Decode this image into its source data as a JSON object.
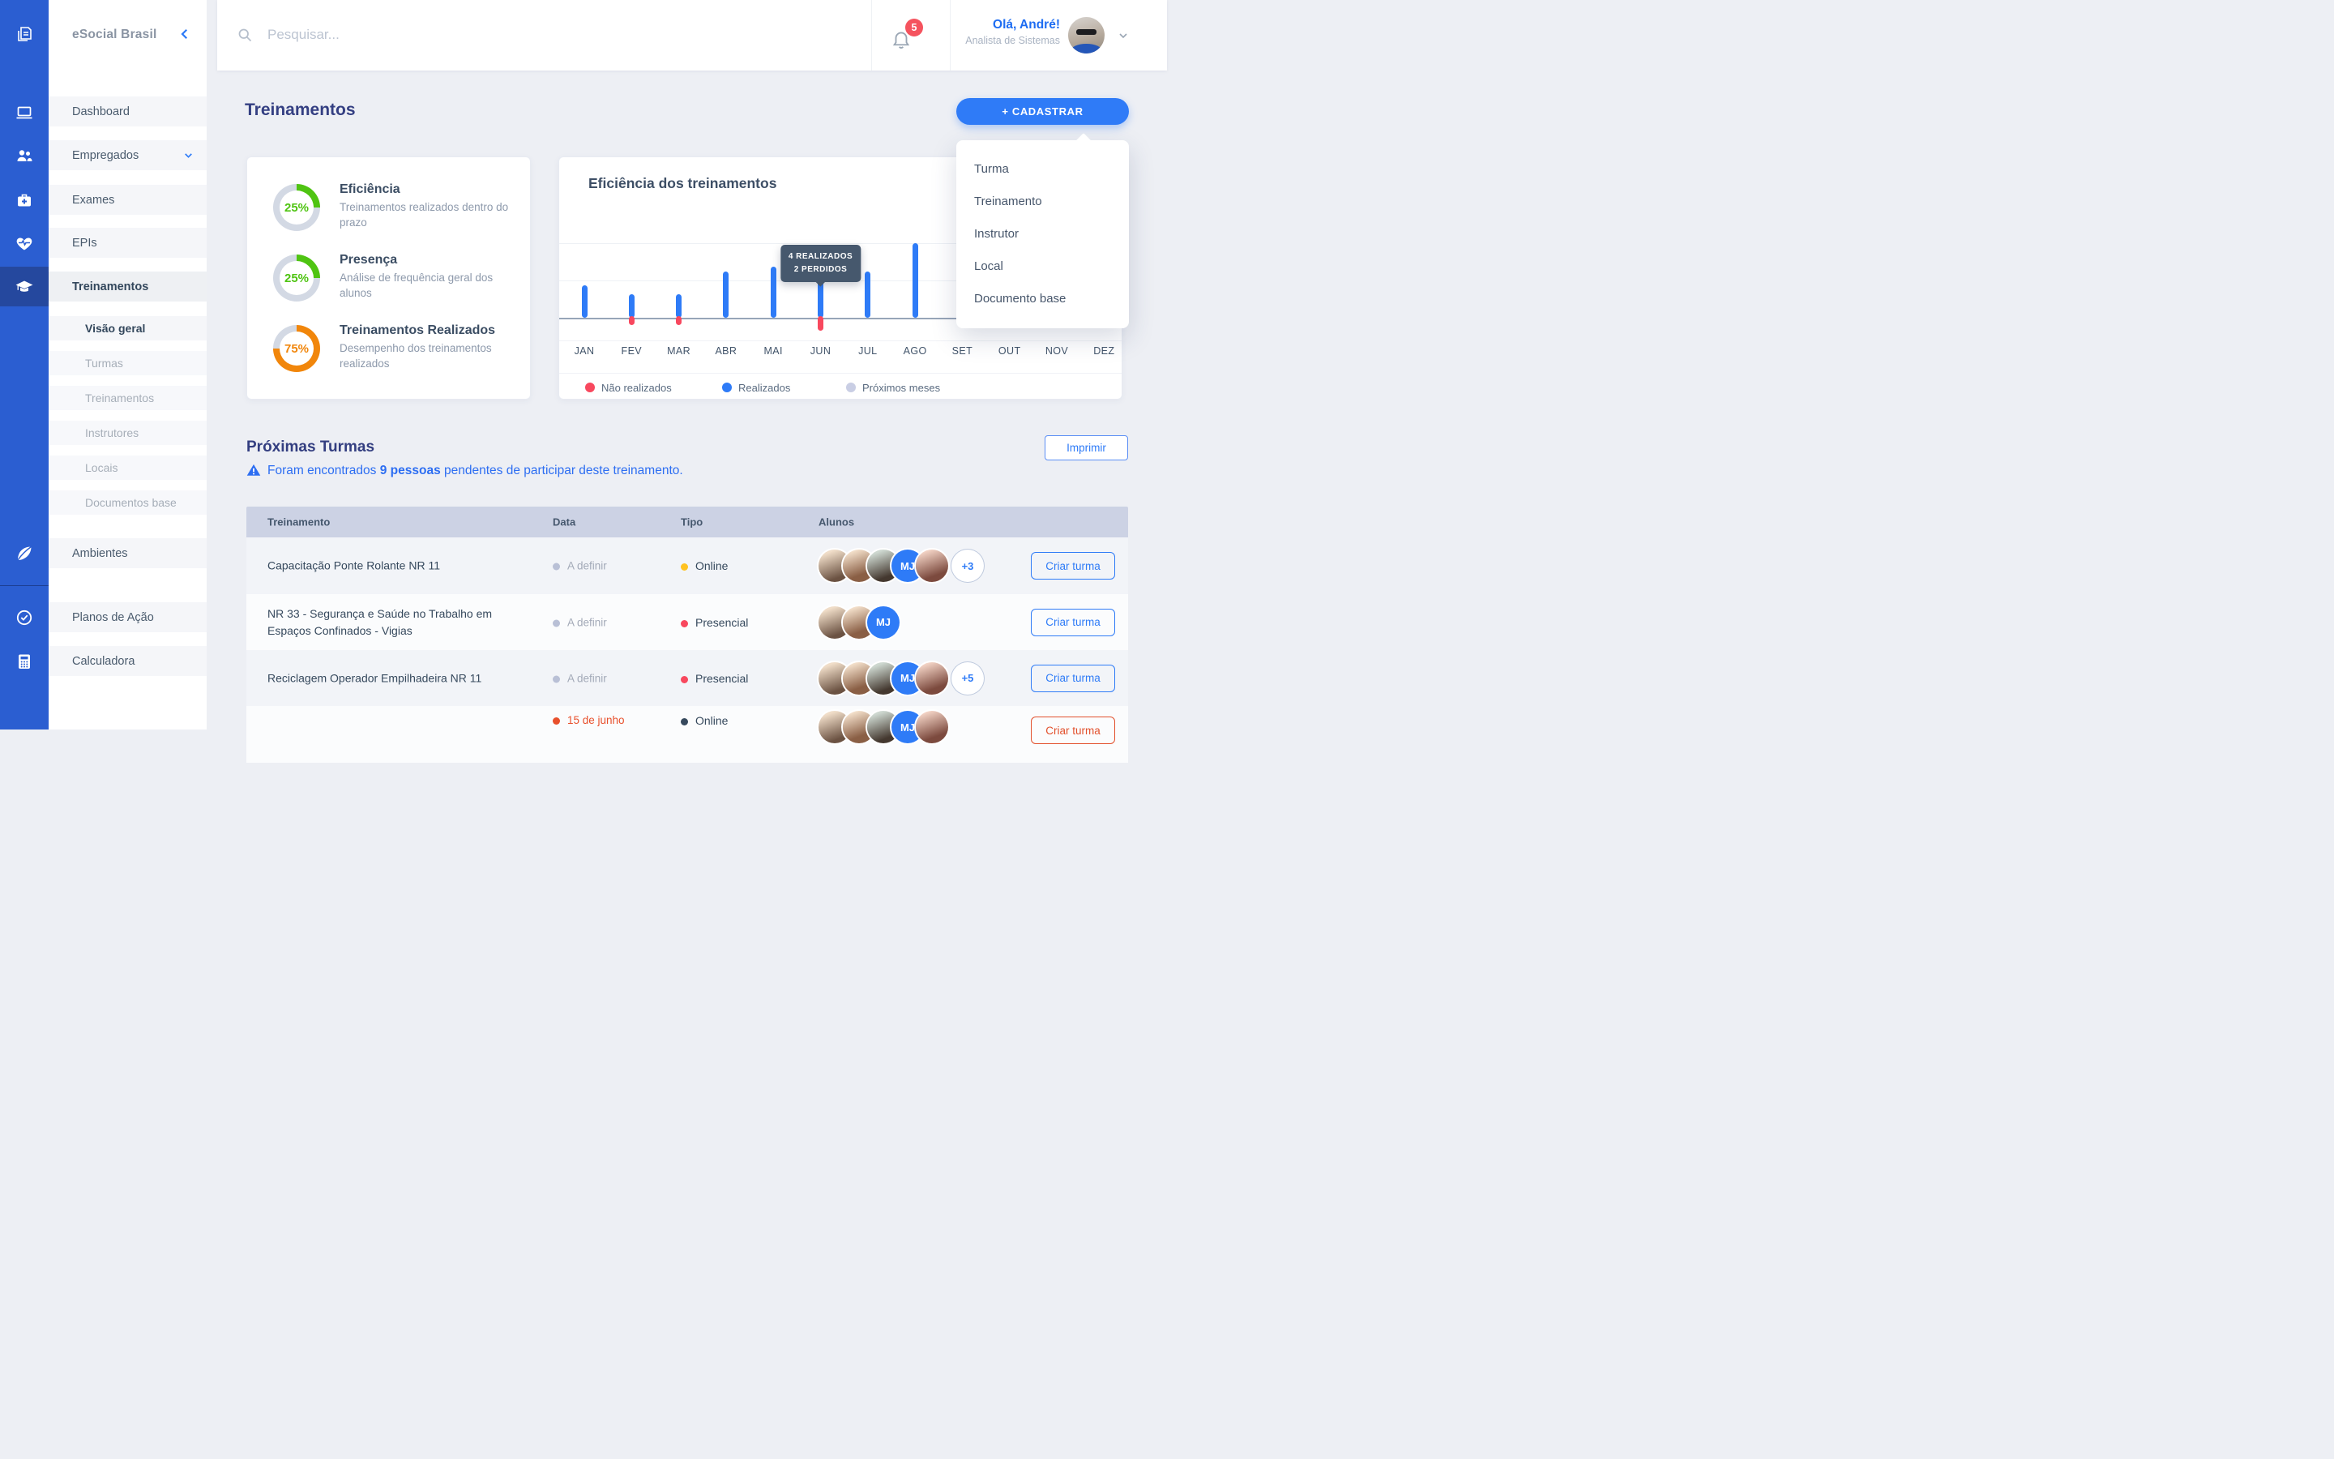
{
  "app": {
    "brand": "eSocial Brasil"
  },
  "topbar": {
    "search_placeholder": "Pesquisar...",
    "notification_count": "5",
    "greeting": "Olá, André!",
    "role": "Analista de Sistemas"
  },
  "sidebar": {
    "items": [
      {
        "label": "Dashboard"
      },
      {
        "label": "Empregados"
      },
      {
        "label": "Exames"
      },
      {
        "label": "EPIs"
      },
      {
        "label": "Treinamentos",
        "active": true
      }
    ],
    "subitems": [
      {
        "label": "Visão geral",
        "active": true
      },
      {
        "label": "Turmas"
      },
      {
        "label": "Treinamentos"
      },
      {
        "label": "Instrutores"
      },
      {
        "label": "Locais"
      },
      {
        "label": "Documentos base"
      }
    ],
    "bottom_items": [
      {
        "label": "Ambientes"
      },
      {
        "label": "Planos de Ação"
      },
      {
        "label": "Calculadora"
      }
    ]
  },
  "page": {
    "title": "Treinamentos",
    "register_button": "+ CADASTRAR"
  },
  "dropdown": {
    "items": [
      "Turma",
      "Treinamento",
      "Instrutor",
      "Local",
      "Documento base"
    ]
  },
  "stats": {
    "items": [
      {
        "percent": "25%",
        "value": 25,
        "color": "#4fc412",
        "title": "Eficiência",
        "description": "Treinamentos realizados dentro do prazo"
      },
      {
        "percent": "25%",
        "value": 25,
        "color": "#4fc412",
        "title": "Presença",
        "description": "Análise de frequência geral dos alunos"
      },
      {
        "percent": "75%",
        "value": 75,
        "color": "#f1860b",
        "title": "Treinamentos Realizados",
        "description": "Desempenho dos treinamentos realizados"
      }
    ]
  },
  "chart_data": {
    "type": "bar",
    "title": "Eficiência dos treinamentos",
    "categories": [
      "JAN",
      "FEV",
      "MAR",
      "ABR",
      "MAI",
      "JUN",
      "JUL",
      "AGO",
      "SET",
      "OUT",
      "NOV",
      "DEZ"
    ],
    "series": [
      {
        "name": "Realizados",
        "color": "#2e7bf7",
        "values": [
          3.5,
          2.5,
          2.5,
          5,
          5.5,
          4,
          5,
          8,
          null,
          null,
          null,
          null
        ]
      },
      {
        "name": "Não realizados",
        "color": "#f8485e",
        "values": [
          0,
          1,
          1,
          0,
          0,
          2,
          0,
          0,
          null,
          null,
          null,
          null
        ]
      }
    ],
    "tooltip": {
      "month": "JUN",
      "lines": [
        "4 REALIZADOS",
        "2 PERDIDOS"
      ]
    },
    "legend": [
      {
        "label": "Não realizados",
        "color": "#f8485e"
      },
      {
        "label": "Realizados",
        "color": "#2e7bf7"
      },
      {
        "label": "Próximos meses",
        "color": "#c9cee4"
      }
    ],
    "xlabel": "",
    "ylabel": "",
    "ylim": [
      0,
      8
    ],
    "grid": true,
    "legend_position": "bottom"
  },
  "section": {
    "title": "Próximas Turmas",
    "alert_prefix": "Foram encontrados ",
    "alert_strong": "9 pessoas",
    "alert_suffix": " pendentes de participar deste treinamento.",
    "print_button": "Imprimir"
  },
  "table": {
    "headers": [
      "Treinamento",
      "Data",
      "Tipo",
      "Alunos"
    ],
    "rows": [
      {
        "name": "Capacitação Ponte Rolante NR 11",
        "date": "A definir",
        "tipo": "Online",
        "tipo_color": "#ffc221",
        "mj": "MJ",
        "more": "+3",
        "action": "Criar turma"
      },
      {
        "name": "NR 33 - Segurança e Saúde no Trabalho em Espaços Confinados - Vigias",
        "date": "A definir",
        "tipo": "Presencial",
        "tipo_color": "#f8485e",
        "mj": "MJ",
        "more": "",
        "action": "Criar turma"
      },
      {
        "name": "Reciclagem Operador Empilhadeira NR 11",
        "date": "A definir",
        "tipo": "Presencial",
        "tipo_color": "#f8485e",
        "mj": "MJ",
        "more": "+5",
        "action": "Criar turma"
      },
      {
        "name": "",
        "date": "15 de junho",
        "date_color": "#e8502c",
        "tipo": "Online",
        "tipo_color": "#36495d",
        "mj": "MJ",
        "more": "",
        "action": "Criar turma"
      }
    ]
  },
  "colors": {
    "accent": "#2e7bf7",
    "rail": "#2b5ed1",
    "rail_active": "#25489e",
    "danger": "#f8485e",
    "overdue": "#e8502c",
    "green": "#4fc412",
    "orange": "#f1860b",
    "table_header_bg": "#ccd2e4",
    "title_indigo": "#343f82"
  }
}
